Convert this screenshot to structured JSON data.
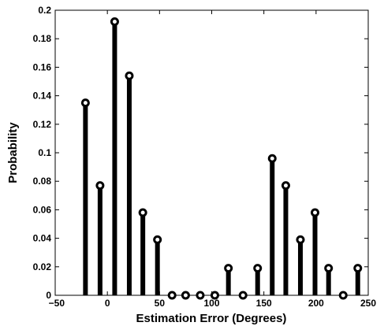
{
  "chart_data": {
    "type": "stem",
    "title": "",
    "xlabel": "Estimation Error (Degrees)",
    "ylabel": "Probability",
    "xlim": [
      -50,
      250
    ],
    "ylim": [
      0,
      0.2
    ],
    "x_ticks": [
      -50,
      0,
      50,
      100,
      150,
      200,
      250
    ],
    "y_ticks": [
      0,
      0.02,
      0.04,
      0.06,
      0.08,
      0.1,
      0.12,
      0.14,
      0.16,
      0.18,
      0.2
    ],
    "x_tick_labels": [
      "−50",
      "0",
      "50",
      "100",
      "150",
      "200",
      "250"
    ],
    "y_tick_labels": [
      "0",
      "0.02",
      "0.04",
      "0.06",
      "0.08",
      "0.1",
      "0.12",
      "0.14",
      "0.16",
      "0.18",
      "0.2"
    ],
    "x": [
      -21,
      -7,
      7,
      21,
      34,
      48,
      62,
      75,
      89,
      103,
      116,
      130,
      144,
      158,
      171,
      185,
      199,
      212,
      226,
      240
    ],
    "y": [
      0.135,
      0.077,
      0.192,
      0.154,
      0.058,
      0.039,
      0,
      0,
      0,
      0,
      0.019,
      0,
      0.019,
      0.096,
      0.077,
      0.039,
      0.058,
      0.019,
      0,
      0.019
    ],
    "grid": false,
    "color": "#000000"
  }
}
